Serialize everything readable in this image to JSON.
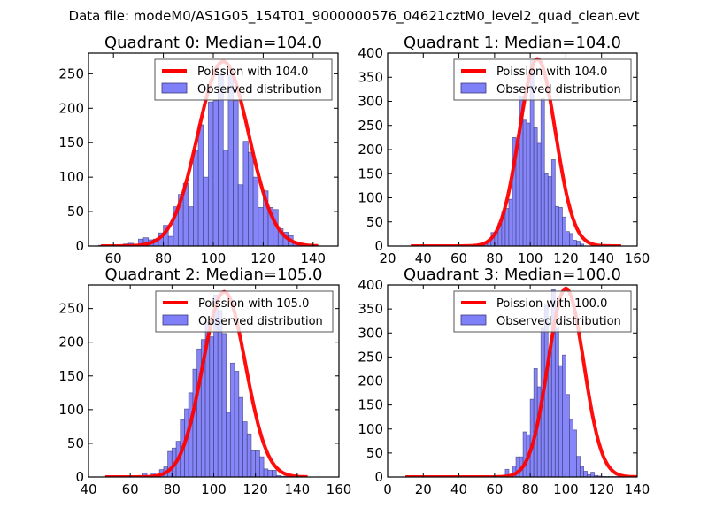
{
  "suptitle": "Data file: modeM0/AS1G05_154T01_9000000576_04621cztM0_level2_quad_clean.evt",
  "colors": {
    "bar_fill": "#7f7ff8",
    "bar_edge": "#3a3a7a",
    "curve": "#ff0000",
    "axis": "#000000"
  },
  "chart_data": [
    {
      "type": "bar",
      "title": "Quadrant 0: Median=104.0",
      "xlabel": "",
      "ylabel": "",
      "xlim": [
        50,
        150
      ],
      "ylim": [
        0,
        280
      ],
      "xticks": [
        60,
        80,
        100,
        120,
        140
      ],
      "yticks": [
        0,
        50,
        100,
        150,
        200,
        250
      ],
      "grid": false,
      "legend": {
        "placement": "upper-right",
        "entries": [
          "Poission with 104.0",
          "Observed distribution"
        ]
      },
      "bin_width": 2,
      "bins": [
        55,
        57,
        59,
        61,
        63,
        65,
        67,
        69,
        71,
        73,
        75,
        77,
        79,
        81,
        83,
        85,
        87,
        89,
        91,
        93,
        95,
        97,
        99,
        101,
        103,
        105,
        107,
        109,
        111,
        113,
        115,
        117,
        119,
        121,
        123,
        125,
        127,
        129,
        131,
        133,
        135,
        137,
        139,
        141
      ],
      "counts": [
        1,
        0,
        0,
        1,
        1,
        3,
        4,
        1,
        10,
        12,
        9,
        10,
        19,
        30,
        14,
        57,
        75,
        91,
        57,
        139,
        176,
        100,
        209,
        211,
        249,
        139,
        248,
        211,
        89,
        152,
        136,
        100,
        56,
        80,
        56,
        53,
        25,
        20,
        15,
        5,
        4,
        2,
        1,
        1
      ],
      "poisson": {
        "mean": 104.0,
        "peak": 268,
        "x_range": [
          55,
          142
        ]
      }
    },
    {
      "type": "bar",
      "title": "Quadrant 1: Median=104.0",
      "xlabel": "",
      "ylabel": "",
      "xlim": [
        20,
        160
      ],
      "ylim": [
        0,
        400
      ],
      "xticks": [
        20,
        40,
        60,
        80,
        100,
        120,
        140,
        160
      ],
      "yticks": [
        0,
        50,
        100,
        150,
        200,
        250,
        300,
        350,
        400
      ],
      "grid": false,
      "legend": {
        "placement": "upper-right",
        "entries": [
          "Poission with 104.0",
          "Observed distribution"
        ]
      },
      "bin_width": 2,
      "bins": [
        69,
        71,
        73,
        75,
        77,
        79,
        81,
        83,
        85,
        87,
        89,
        91,
        93,
        95,
        97,
        99,
        101,
        103,
        105,
        107,
        109,
        111,
        113,
        115,
        117,
        119,
        121,
        123,
        125,
        127,
        129
      ],
      "counts": [
        2,
        3,
        3,
        5,
        8,
        28,
        29,
        47,
        72,
        78,
        97,
        225,
        211,
        311,
        261,
        255,
        385,
        245,
        213,
        306,
        150,
        144,
        179,
        82,
        80,
        60,
        30,
        26,
        12,
        10,
        4
      ],
      "poisson": {
        "mean": 104.0,
        "peak": 388,
        "x_range": [
          33,
          151
        ]
      }
    },
    {
      "type": "bar",
      "title": "Quadrant 2: Median=105.0",
      "xlabel": "",
      "ylabel": "",
      "xlim": [
        40,
        160
      ],
      "ylim": [
        0,
        285
      ],
      "xticks": [
        40,
        60,
        80,
        100,
        120,
        140,
        160
      ],
      "yticks": [
        0,
        50,
        100,
        150,
        200,
        250
      ],
      "grid": false,
      "legend": {
        "placement": "upper-right",
        "entries": [
          "Poission with 105.0",
          "Observed distribution"
        ]
      },
      "bin_width": 2,
      "bins": [
        67,
        69,
        71,
        73,
        75,
        77,
        79,
        81,
        83,
        85,
        87,
        89,
        91,
        93,
        95,
        97,
        99,
        101,
        103,
        105,
        107,
        109,
        111,
        113,
        115,
        117,
        119,
        121,
        123,
        125,
        127,
        129,
        131,
        133,
        135,
        137
      ],
      "counts": [
        6,
        2,
        6,
        3,
        11,
        15,
        38,
        43,
        53,
        85,
        101,
        125,
        160,
        190,
        204,
        230,
        208,
        270,
        247,
        213,
        96,
        169,
        157,
        118,
        82,
        64,
        39,
        39,
        30,
        12,
        10,
        10,
        2,
        1,
        1,
        1
      ],
      "poisson": {
        "mean": 105.0,
        "peak": 275,
        "x_range": [
          48,
          145
        ]
      }
    },
    {
      "type": "bar",
      "title": "Quadrant 3: Median=100.0",
      "xlabel": "",
      "ylabel": "",
      "xlim": [
        0,
        140
      ],
      "ylim": [
        0,
        400
      ],
      "xticks": [
        0,
        20,
        40,
        60,
        80,
        100,
        120,
        140
      ],
      "yticks": [
        0,
        50,
        100,
        150,
        200,
        250,
        300,
        350,
        400
      ],
      "grid": false,
      "legend": {
        "placement": "upper-right",
        "entries": [
          "Poission with 100.0",
          "Observed distribution"
        ]
      },
      "bin_width": 2,
      "bins": [
        63,
        65,
        67,
        69,
        71,
        73,
        75,
        77,
        79,
        81,
        83,
        85,
        87,
        89,
        91,
        93,
        95,
        97,
        99,
        101,
        103,
        105,
        107,
        109,
        111,
        113,
        115,
        117,
        119,
        121,
        123,
        125,
        127,
        129,
        131,
        133
      ],
      "counts": [
        3,
        3,
        16,
        5,
        23,
        42,
        42,
        94,
        88,
        162,
        226,
        188,
        310,
        358,
        260,
        390,
        310,
        232,
        254,
        172,
        120,
        98,
        43,
        22,
        12,
        5,
        10,
        3,
        2,
        1,
        1,
        1,
        1,
        1,
        1,
        1
      ],
      "poisson": {
        "mean": 100.0,
        "peak": 393,
        "x_range": [
          10,
          140
        ]
      }
    }
  ]
}
